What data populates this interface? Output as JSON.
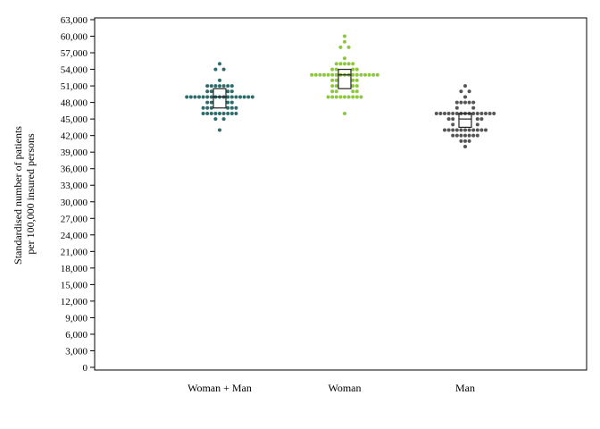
{
  "chart_data": {
    "type": "scatter",
    "subtype": "dot-plot with median boxes",
    "ylabel_lines": [
      "Standardised number of patients",
      "per 100,000 insured persons"
    ],
    "ylim": [
      0,
      63000
    ],
    "yticks": [
      0,
      3000,
      6000,
      9000,
      12000,
      15000,
      18000,
      21000,
      24000,
      27000,
      30000,
      33000,
      36000,
      39000,
      42000,
      45000,
      48000,
      51000,
      54000,
      57000,
      60000,
      63000
    ],
    "ytick_labels": [
      "0",
      "3,000",
      "6,000",
      "9,000",
      "12,000",
      "15,000",
      "18,000",
      "21,000",
      "24,000",
      "27,000",
      "30,000",
      "33,000",
      "36,000",
      "39,000",
      "42,000",
      "45,000",
      "48,000",
      "51,000",
      "54,000",
      "57,000",
      "60,000",
      "63,000"
    ],
    "categories": [
      "Woman + Man",
      "Woman",
      "Man"
    ],
    "grid": false,
    "series": [
      {
        "color": "#2e6b6b",
        "box": {
          "q1": 47000,
          "median": 49000,
          "q3": 50500
        },
        "points": [
          [
            0,
            55000
          ],
          [
            -1,
            54000
          ],
          [
            1,
            54000
          ],
          [
            0,
            52000
          ],
          [
            -3,
            51000
          ],
          [
            -2,
            51000
          ],
          [
            -1,
            51000
          ],
          [
            0,
            51000
          ],
          [
            1,
            51000
          ],
          [
            2,
            51000
          ],
          [
            3,
            51000
          ],
          [
            -3,
            50000
          ],
          [
            -2,
            50000
          ],
          [
            2,
            50000
          ],
          [
            3,
            50000
          ],
          [
            -8,
            49000
          ],
          [
            -7,
            49000
          ],
          [
            -6,
            49000
          ],
          [
            -5,
            49000
          ],
          [
            -4,
            49000
          ],
          [
            -3,
            49000
          ],
          [
            -2,
            49000
          ],
          [
            -1,
            49000
          ],
          [
            0,
            49000
          ],
          [
            1,
            49000
          ],
          [
            2,
            49000
          ],
          [
            3,
            49000
          ],
          [
            4,
            49000
          ],
          [
            5,
            49000
          ],
          [
            6,
            49000
          ],
          [
            7,
            49000
          ],
          [
            8,
            49000
          ],
          [
            -3,
            48000
          ],
          [
            -2,
            48000
          ],
          [
            2,
            48000
          ],
          [
            3,
            48000
          ],
          [
            -4,
            47000
          ],
          [
            -3,
            47000
          ],
          [
            -2,
            47000
          ],
          [
            2,
            47000
          ],
          [
            3,
            47000
          ],
          [
            4,
            47000
          ],
          [
            -4,
            46000
          ],
          [
            -3,
            46000
          ],
          [
            -2,
            46000
          ],
          [
            -1,
            46000
          ],
          [
            0,
            46000
          ],
          [
            1,
            46000
          ],
          [
            2,
            46000
          ],
          [
            3,
            46000
          ],
          [
            4,
            46000
          ],
          [
            -1,
            45000
          ],
          [
            1,
            45000
          ],
          [
            0,
            43000
          ]
        ]
      },
      {
        "color": "#8dc63f",
        "box": {
          "q1": 50500,
          "median": 53000,
          "q3": 54000
        },
        "points": [
          [
            0,
            60000
          ],
          [
            0,
            59000
          ],
          [
            -1,
            58000
          ],
          [
            1,
            58000
          ],
          [
            0,
            56000
          ],
          [
            -2,
            55000
          ],
          [
            -1,
            55000
          ],
          [
            0,
            55000
          ],
          [
            1,
            55000
          ],
          [
            2,
            55000
          ],
          [
            -3,
            54000
          ],
          [
            -2,
            54000
          ],
          [
            2,
            54000
          ],
          [
            3,
            54000
          ],
          [
            -8,
            53000
          ],
          [
            -7,
            53000
          ],
          [
            -6,
            53000
          ],
          [
            -5,
            53000
          ],
          [
            -4,
            53000
          ],
          [
            -3,
            53000
          ],
          [
            -2,
            53000
          ],
          [
            -1,
            53000
          ],
          [
            0,
            53000
          ],
          [
            1,
            53000
          ],
          [
            2,
            53000
          ],
          [
            3,
            53000
          ],
          [
            4,
            53000
          ],
          [
            5,
            53000
          ],
          [
            6,
            53000
          ],
          [
            7,
            53000
          ],
          [
            8,
            53000
          ],
          [
            -3,
            52000
          ],
          [
            -2,
            52000
          ],
          [
            2,
            52000
          ],
          [
            3,
            52000
          ],
          [
            -3,
            51000
          ],
          [
            -2,
            51000
          ],
          [
            2,
            51000
          ],
          [
            3,
            51000
          ],
          [
            -3,
            50000
          ],
          [
            -2,
            50000
          ],
          [
            2,
            50000
          ],
          [
            3,
            50000
          ],
          [
            -4,
            49000
          ],
          [
            -3,
            49000
          ],
          [
            -2,
            49000
          ],
          [
            -1,
            49000
          ],
          [
            0,
            49000
          ],
          [
            1,
            49000
          ],
          [
            2,
            49000
          ],
          [
            3,
            49000
          ],
          [
            4,
            49000
          ],
          [
            0,
            46000
          ]
        ]
      },
      {
        "color": "#555555",
        "box": {
          "q1": 43500,
          "median": 45000,
          "q3": 46000
        },
        "points": [
          [
            0,
            51000
          ],
          [
            -1,
            50000
          ],
          [
            1,
            50000
          ],
          [
            0,
            49000
          ],
          [
            -2,
            48000
          ],
          [
            -1,
            48000
          ],
          [
            0,
            48000
          ],
          [
            1,
            48000
          ],
          [
            2,
            48000
          ],
          [
            -2,
            47000
          ],
          [
            2,
            47000
          ],
          [
            -7,
            46000
          ],
          [
            -6,
            46000
          ],
          [
            -5,
            46000
          ],
          [
            -4,
            46000
          ],
          [
            -3,
            46000
          ],
          [
            -2,
            46000
          ],
          [
            -1,
            46000
          ],
          [
            0,
            46000
          ],
          [
            1,
            46000
          ],
          [
            2,
            46000
          ],
          [
            3,
            46000
          ],
          [
            4,
            46000
          ],
          [
            5,
            46000
          ],
          [
            6,
            46000
          ],
          [
            7,
            46000
          ],
          [
            -4,
            45000
          ],
          [
            -3,
            45000
          ],
          [
            3,
            45000
          ],
          [
            4,
            45000
          ],
          [
            -3,
            44000
          ],
          [
            3,
            44000
          ],
          [
            -5,
            43000
          ],
          [
            -4,
            43000
          ],
          [
            -3,
            43000
          ],
          [
            -2,
            43000
          ],
          [
            -1,
            43000
          ],
          [
            0,
            43000
          ],
          [
            1,
            43000
          ],
          [
            2,
            43000
          ],
          [
            3,
            43000
          ],
          [
            4,
            43000
          ],
          [
            5,
            43000
          ],
          [
            -3,
            42000
          ],
          [
            -2,
            42000
          ],
          [
            -1,
            42000
          ],
          [
            0,
            42000
          ],
          [
            1,
            42000
          ],
          [
            2,
            42000
          ],
          [
            3,
            42000
          ],
          [
            -1,
            41000
          ],
          [
            0,
            41000
          ],
          [
            1,
            41000
          ],
          [
            0,
            40000
          ]
        ]
      }
    ]
  }
}
